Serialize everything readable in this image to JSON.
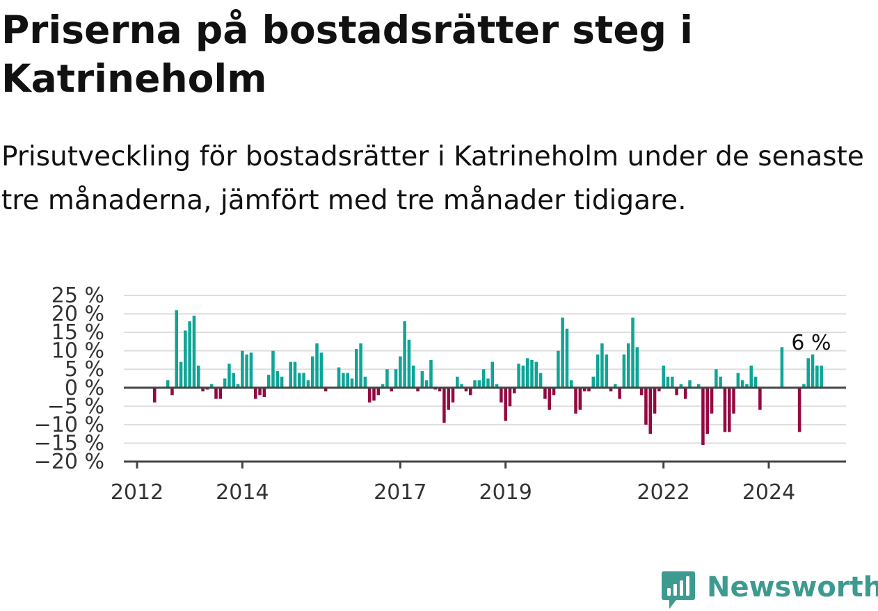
{
  "header": {
    "title": "Priserna på bostadsrätter steg i Katrineholm",
    "subtitle": "Prisutveckling för bostadsrätter i Katrineholm under de senaste tre månaderna, jämfört med tre månader tidigare."
  },
  "brand": {
    "name": "Newsworthy",
    "icon": "newsworthy-logo-icon",
    "color": "#3d9a90"
  },
  "colors": {
    "positive": "#0fa596",
    "negative": "#950842",
    "zero_line": "#444444",
    "grid": "#dddddd",
    "axis_text": "#333333"
  },
  "chart_data": {
    "type": "bar",
    "title": "Priserna på bostadsrätter steg i Katrineholm",
    "xlabel": "",
    "ylabel": "",
    "ylim": [
      -20,
      25
    ],
    "y_ticks": [
      25,
      20,
      15,
      10,
      5,
      0,
      -5,
      -10,
      -15,
      -20
    ],
    "y_tick_labels": [
      "25 %",
      "20 %",
      "15 %",
      "10 %",
      "5 %",
      "0 %",
      "−5 %",
      "−10 %",
      "−15 %",
      "−20 %"
    ],
    "x_ticks": [
      2012,
      2014,
      2017,
      2019,
      2022,
      2024
    ],
    "x_tick_labels": [
      "2012",
      "2014",
      "2017",
      "2019",
      "2022",
      "2024"
    ],
    "grid": true,
    "annotation": {
      "label": "6 %",
      "value": 6
    },
    "start": "2012-03",
    "values": [
      null,
      null,
      -4,
      null,
      null,
      2,
      -2,
      21,
      7,
      15.5,
      18,
      19.5,
      6,
      -1,
      -0.5,
      1,
      -3,
      -3,
      2.5,
      6.5,
      4,
      1,
      10,
      9,
      9.5,
      -3,
      -2,
      -2.5,
      3.5,
      10,
      4.5,
      3,
      null,
      7,
      7,
      4,
      4,
      2,
      8.5,
      12,
      9.5,
      -1,
      null,
      null,
      5.5,
      4,
      4,
      2.5,
      10.5,
      12,
      3,
      -4,
      -3.5,
      -2,
      1,
      5,
      -1,
      5,
      8.5,
      18,
      13,
      6,
      -1,
      4.5,
      2,
      7.5,
      -0.5,
      -1,
      -9.5,
      -6,
      -4,
      3,
      1,
      -1,
      -2,
      2,
      2,
      5,
      2.5,
      7,
      1,
      -4,
      -9,
      -5,
      -1.5,
      6.5,
      6,
      8,
      7.5,
      7,
      4,
      -3,
      -6,
      -2,
      10,
      19,
      16,
      2,
      -7,
      -6,
      -1,
      -1,
      3,
      9,
      12,
      9,
      -1,
      1,
      -3,
      9,
      12,
      19,
      11,
      -2,
      -10,
      -12.5,
      -7,
      -1,
      6,
      3,
      3,
      -2,
      1,
      -3,
      2,
      null,
      1,
      -15.5,
      -12.5,
      -7,
      5,
      3,
      -12,
      -12,
      -7,
      4,
      2,
      1,
      6,
      3,
      -6,
      null,
      null,
      null,
      null,
      11,
      null,
      null,
      null,
      -12,
      1,
      8,
      9,
      6,
      6
    ]
  }
}
